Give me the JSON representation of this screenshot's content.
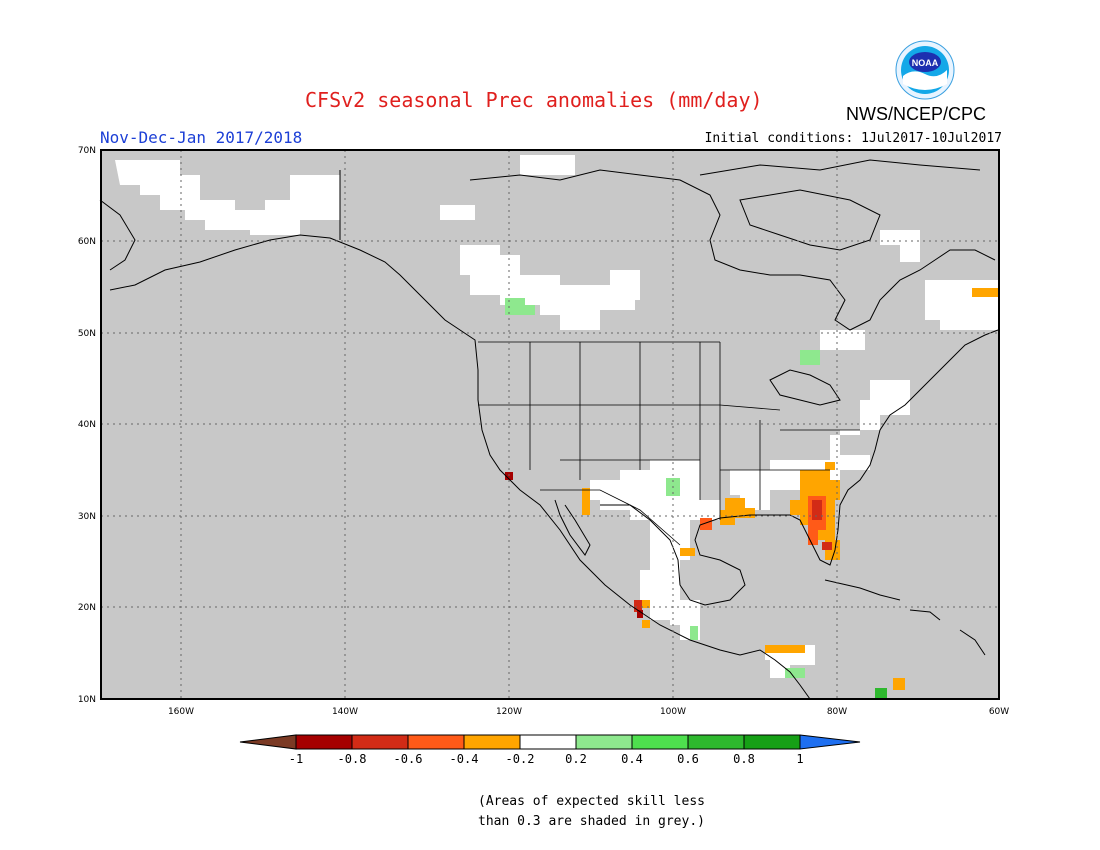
{
  "title": "CFSv2 seasonal Prec anomalies (mm/day)",
  "period": "Nov-Dec-Jan 2017/2018",
  "agency": "NWS/NCEP/CPC",
  "logo_text": "NOAA",
  "initial_conditions": "Initial conditions: 1Jul2017-10Jul2017",
  "map": {
    "lon_range": [
      -172,
      -60
    ],
    "lat_range": [
      10,
      70
    ],
    "lat_labels": [
      "70N",
      "60N",
      "50N",
      "40N",
      "30N",
      "20N",
      "10N"
    ],
    "lon_labels": [
      "160W",
      "140W",
      "120W",
      "100W",
      "80W",
      "60W"
    ],
    "background_color": "#c8c8c8",
    "gridlines": "dotted"
  },
  "legend": {
    "labels": [
      "-1",
      "-0.8",
      "-0.6",
      "-0.4",
      "-0.2",
      "0.2",
      "0.4",
      "0.6",
      "0.8",
      "1"
    ],
    "colors": [
      "#7b3a24",
      "#a50000",
      "#d22b16",
      "#ff5a18",
      "#ffa500",
      "#ffffff",
      "#8ee88e",
      "#4ee04e",
      "#2eb82e",
      "#16a016",
      "#1e6ff0"
    ]
  },
  "note": [
    "(Areas of expected skill less",
    "than 0.3 are shaded in grey.)"
  ]
}
